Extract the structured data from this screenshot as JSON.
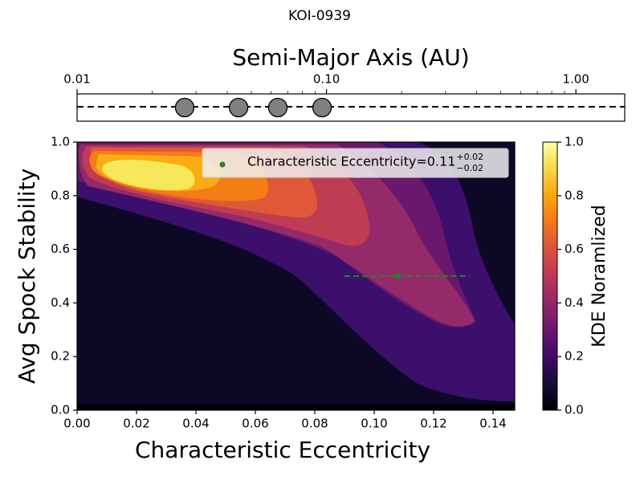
{
  "chart_data": [
    {
      "type": "scatter",
      "title": "KOI-0939",
      "xlabel": "Semi-Major Axis (AU)",
      "xscale": "log",
      "xlim": [
        0.01,
        1.57
      ],
      "xticks": [
        0.01,
        {
          "value": 0.1,
          "label": "0.10"
        },
        {
          "value": 1,
          "label": "1.00"
        }
      ],
      "xminorticks": [
        0.02,
        0.03,
        0.04,
        0.05,
        0.06,
        0.07,
        0.08,
        0.09,
        0.2,
        0.3,
        0.4,
        0.5,
        0.6,
        0.7,
        0.8,
        0.9
      ],
      "x": [
        0.027,
        0.0444,
        0.0638,
        0.096
      ],
      "color": "#808080"
    },
    {
      "type": "contour",
      "xlabel": "Characteristic Eccentricity",
      "ylabel": "Avg Spock Stability",
      "xlim": [
        0,
        0.1473
      ],
      "ylim": [
        0,
        1
      ],
      "xticks": [
        {
          "value": 0,
          "label": "0.00"
        },
        0.02,
        0.04,
        0.06,
        0.08,
        {
          "value": 0.1,
          "label": "0.10"
        },
        0.12,
        0.14
      ],
      "yticks": [
        {
          "value": 0,
          "label": "0.0"
        },
        0.2,
        0.4,
        0.6,
        0.8,
        {
          "value": 1,
          "label": "1.0"
        }
      ],
      "band_colors": [
        "#0c0826",
        "#3b0f6b",
        "#6a176e",
        "#952a6a",
        "#c03c52",
        "#e05838",
        "#f47d16",
        "#fbac12",
        "#f6e85a"
      ],
      "point": {
        "x": 0.108,
        "y": 0.5,
        "xerr": [
          0.018,
          0.024
        ],
        "color": "#1a8a1a",
        "label": "Characteristic Eccentricity=0.11",
        "label_upper": "+0.02",
        "label_lower": "−0.02"
      },
      "colorbar": {
        "label": "KDE Noramlized",
        "lim": [
          0,
          1
        ],
        "ticks": [
          {
            "value": 0,
            "label": "0.0"
          },
          0.2,
          0.4,
          0.6,
          0.8,
          {
            "value": 1,
            "label": "1.0"
          }
        ]
      }
    }
  ]
}
